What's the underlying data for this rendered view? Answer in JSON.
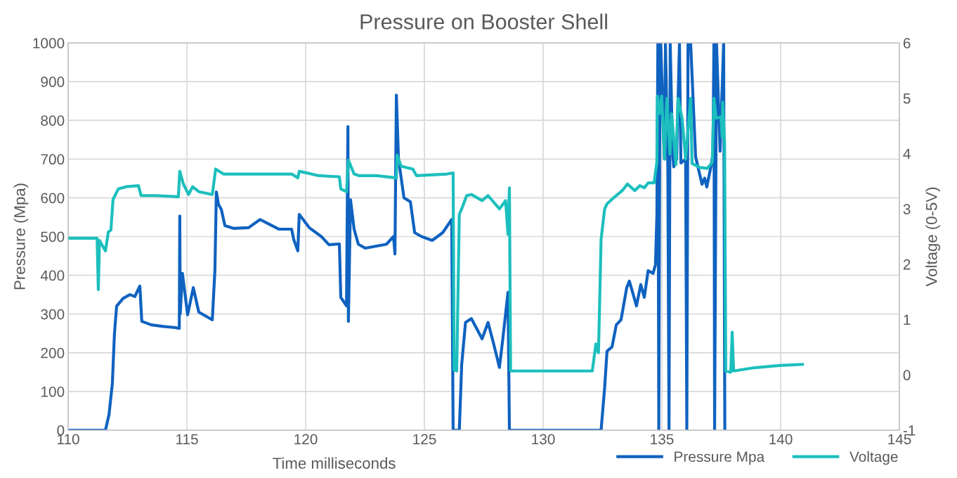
{
  "chart_data": {
    "type": "line",
    "title": "Pressure on Booster Shell",
    "xlabel": "Time milliseconds",
    "ylabel": "Pressure (Mpa)",
    "y2label": "Voltage (0-5V)",
    "xlim": [
      110,
      145
    ],
    "xticks": [
      110,
      115,
      120,
      125,
      130,
      135,
      140,
      145
    ],
    "ylim": [
      0,
      1000
    ],
    "yticks": [
      0,
      100,
      200,
      300,
      400,
      500,
      600,
      700,
      800,
      900,
      1000
    ],
    "y2lim": [
      -1,
      6
    ],
    "y2ticks": [
      -1,
      0,
      1,
      2,
      3,
      4,
      5,
      6
    ],
    "grid": true,
    "legend": "bottom right",
    "marker": "none",
    "line_style": "solid",
    "series": [
      {
        "name": "Pressure Mpa",
        "color": "#0f62c0",
        "x": [
          110.0,
          110.74,
          111.57,
          111.72,
          111.86,
          111.95,
          112.04,
          112.31,
          112.6,
          112.81,
          112.96,
          113.02,
          113.1,
          113.5,
          114.0,
          114.5,
          114.68,
          114.7,
          114.72,
          114.81,
          115.03,
          115.27,
          115.5,
          116.07,
          116.18,
          116.24,
          116.33,
          116.45,
          116.6,
          116.98,
          117.6,
          118.08,
          118.46,
          118.88,
          119.41,
          119.5,
          119.67,
          119.73,
          120.15,
          120.68,
          120.98,
          121.42,
          121.48,
          121.72,
          121.78,
          121.8,
          121.89,
          122.04,
          122.22,
          122.51,
          123.4,
          123.7,
          123.76,
          123.82,
          123.91,
          124.14,
          124.41,
          124.59,
          124.88,
          125.33,
          125.77,
          126.15,
          126.21,
          126.47,
          126.57,
          126.73,
          126.98,
          127.43,
          127.68,
          127.9,
          128.16,
          128.31,
          128.52,
          128.58,
          132.44,
          132.59,
          132.69,
          132.9,
          133.08,
          133.28,
          133.52,
          133.63,
          133.93,
          134.11,
          134.26,
          134.42,
          134.63,
          134.73,
          134.79,
          134.83,
          134.87,
          134.92,
          134.95,
          135.11,
          135.15,
          135.25,
          135.3,
          135.35,
          135.45,
          135.5,
          135.62,
          135.74,
          135.8,
          136.0,
          136.05,
          136.1,
          136.21,
          136.42,
          136.69,
          136.8,
          136.89,
          137.07,
          137.15,
          137.19,
          137.22,
          137.3,
          137.45,
          137.6,
          137.65
        ],
        "values": [
          0,
          0,
          0,
          40,
          120,
          250,
          320,
          340,
          350,
          345,
          365,
          372,
          281,
          272,
          268,
          265,
          263,
          553,
          300,
          405,
          298,
          368,
          305,
          285,
          414,
          615,
          583,
          570,
          528,
          521,
          523,
          544,
          532,
          519,
          519,
          492,
          463,
          557,
          523,
          499,
          479,
          481,
          343,
          321,
          784,
          281,
          595,
          519,
          480,
          470,
          480,
          500,
          455,
          865,
          700,
          600,
          590,
          510,
          500,
          490,
          510,
          544,
          0,
          0,
          169,
          278,
          288,
          236,
          278,
          227,
          162,
          240,
          356,
          0,
          0,
          110,
          204,
          215,
          272,
          285,
          368,
          385,
          321,
          376,
          343,
          412,
          405,
          428,
          557,
          1000,
          0,
          1000,
          1000,
          700,
          1000,
          680,
          0,
          1000,
          720,
          680,
          700,
          1000,
          690,
          700,
          0,
          1000,
          1000,
          706,
          635,
          651,
          628,
          682,
          713,
          1000,
          0,
          1000,
          720,
          1000,
          0
        ]
      },
      {
        "name": "Voltage",
        "color": "#1cbfbd",
        "axis": "y2",
        "x": [
          110.0,
          111.22,
          111.27,
          111.32,
          111.57,
          111.69,
          111.8,
          111.89,
          112.11,
          112.43,
          112.96,
          113.07,
          113.7,
          114.64,
          114.7,
          114.85,
          115.07,
          115.24,
          115.5,
          116.07,
          116.21,
          116.54,
          117.4,
          118.46,
          119.41,
          119.67,
          119.73,
          120.56,
          121.42,
          121.48,
          121.72,
          121.8,
          122.04,
          122.25,
          122.99,
          123.82,
          123.85,
          124.02,
          124.51,
          124.67,
          125.95,
          126.21,
          126.25,
          126.36,
          126.47,
          126.57,
          126.78,
          126.98,
          127.43,
          127.68,
          128.16,
          128.42,
          128.52,
          128.58,
          128.63,
          132.07,
          132.22,
          132.33,
          132.44,
          132.59,
          132.69,
          133.02,
          133.33,
          133.55,
          133.86,
          134.07,
          134.26,
          134.42,
          134.67,
          134.79,
          134.81,
          134.89,
          134.99,
          135.11,
          135.21,
          135.34,
          135.41,
          135.59,
          135.68,
          135.85,
          136.0,
          136.21,
          136.27,
          136.59,
          136.91,
          137.12,
          137.19,
          137.28,
          137.49,
          137.54,
          137.56,
          137.64,
          137.69,
          137.9,
          137.96,
          138.02,
          138.91,
          139.97,
          140.92
        ],
        "values": [
          2.47,
          2.47,
          1.54,
          2.43,
          2.24,
          2.58,
          2.62,
          3.17,
          3.36,
          3.4,
          3.42,
          3.24,
          3.24,
          3.22,
          3.68,
          3.45,
          3.26,
          3.4,
          3.31,
          3.26,
          3.72,
          3.63,
          3.63,
          3.63,
          3.63,
          3.56,
          3.68,
          3.6,
          3.58,
          3.36,
          3.31,
          3.88,
          3.63,
          3.6,
          3.6,
          3.56,
          3.97,
          3.77,
          3.72,
          3.6,
          3.63,
          3.65,
          0.09,
          0.07,
          2.9,
          3.0,
          3.24,
          3.26,
          3.15,
          3.24,
          3.0,
          3.15,
          2.54,
          3.38,
          0.07,
          0.07,
          0.56,
          0.4,
          2.45,
          3.0,
          3.09,
          3.22,
          3.33,
          3.45,
          3.33,
          3.42,
          3.38,
          3.47,
          3.47,
          3.85,
          5.04,
          4.72,
          5.04,
          3.9,
          5.0,
          3.99,
          4.72,
          3.8,
          5.0,
          4.64,
          3.9,
          5.0,
          3.82,
          3.75,
          3.73,
          3.84,
          5.0,
          4.64,
          4.66,
          4.3,
          4.93,
          4.19,
          0.07,
          0.05,
          0.77,
          0.07,
          0.13,
          0.17,
          0.19
        ]
      }
    ]
  }
}
